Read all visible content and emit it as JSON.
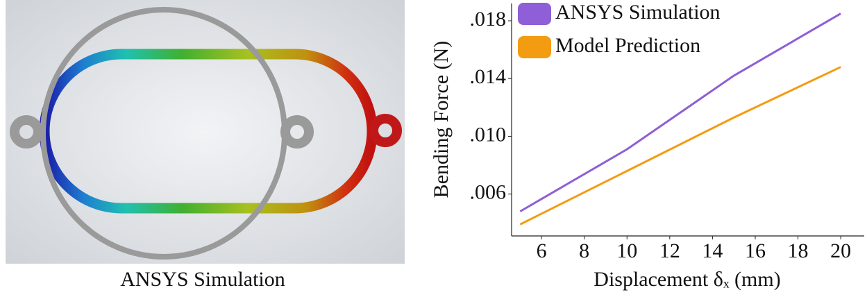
{
  "image_caption": "ANSYS Simulation",
  "chart_data": {
    "type": "line",
    "x_label": "Displacement δₓ (mm)",
    "y_label": "Bending Force (N)",
    "x": [
      5,
      10,
      15,
      20
    ],
    "series": [
      {
        "name": "ANSYS Simulation",
        "color": "#8e5fd6",
        "values": [
          0.0048,
          0.0091,
          0.0142,
          0.0185
        ]
      },
      {
        "name": "Model Prediction",
        "color": "#f39c12",
        "values": [
          0.0039,
          0.0076,
          0.0113,
          0.0148
        ]
      }
    ],
    "xlim": [
      4.6,
      21.1
    ],
    "ylim": [
      0.0031,
      0.0192
    ],
    "xticks": [
      6,
      8,
      10,
      12,
      14,
      16,
      18,
      20
    ],
    "yticks": [
      {
        "value": 0.006,
        "label": ".006"
      },
      {
        "value": 0.01,
        "label": ".010"
      },
      {
        "value": 0.014,
        "label": ".014"
      },
      {
        "value": 0.018,
        "label": ".018"
      }
    ],
    "grid": false,
    "legend": "upper left"
  }
}
